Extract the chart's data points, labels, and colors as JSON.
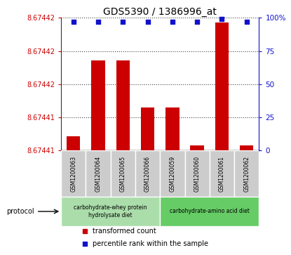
{
  "title": "GDS5390 / 1386996_at",
  "samples": [
    "GSM1200063",
    "GSM1200064",
    "GSM1200065",
    "GSM1200066",
    "GSM1200059",
    "GSM1200060",
    "GSM1200061",
    "GSM1200062"
  ],
  "bar_values": [
    8.67441,
    8.674418,
    8.674418,
    8.674413,
    8.674413,
    8.674409,
    8.674422,
    8.674409
  ],
  "percentile_values": [
    97,
    97,
    97,
    97,
    97,
    97,
    99,
    97
  ],
  "ylim_left": [
    8.674408,
    8.674224
  ],
  "ylim_right": [
    0,
    100
  ],
  "ytick_vals": [
    8.67441,
    8.674412,
    8.674414,
    8.674416,
    8.674418,
    8.67442
  ],
  "ytick_labels": [
    "8.67441",
    "8.67441",
    "8.67441",
    "8.67441",
    "8.67442",
    "8.67442"
  ],
  "yticks_right": [
    0,
    25,
    50,
    75,
    100
  ],
  "bar_color": "#cc0000",
  "dot_color": "#1111cc",
  "protocol_groups": [
    {
      "label": "carbohydrate-whey protein\nhydrolysate diet",
      "start": 0,
      "end": 4,
      "color": "#aaddaa"
    },
    {
      "label": "carbohydrate-amino acid diet",
      "start": 4,
      "end": 8,
      "color": "#66cc66"
    }
  ],
  "legend_items": [
    {
      "label": "transformed count",
      "color": "#cc0000"
    },
    {
      "label": "percentile rank within the sample",
      "color": "#1111cc"
    }
  ],
  "protocol_label": "protocol",
  "background_color": "#ffffff",
  "plot_bg_color": "#ffffff",
  "grid_color": "#444444",
  "sample_box_color": "#cccccc",
  "title_fontsize": 10
}
